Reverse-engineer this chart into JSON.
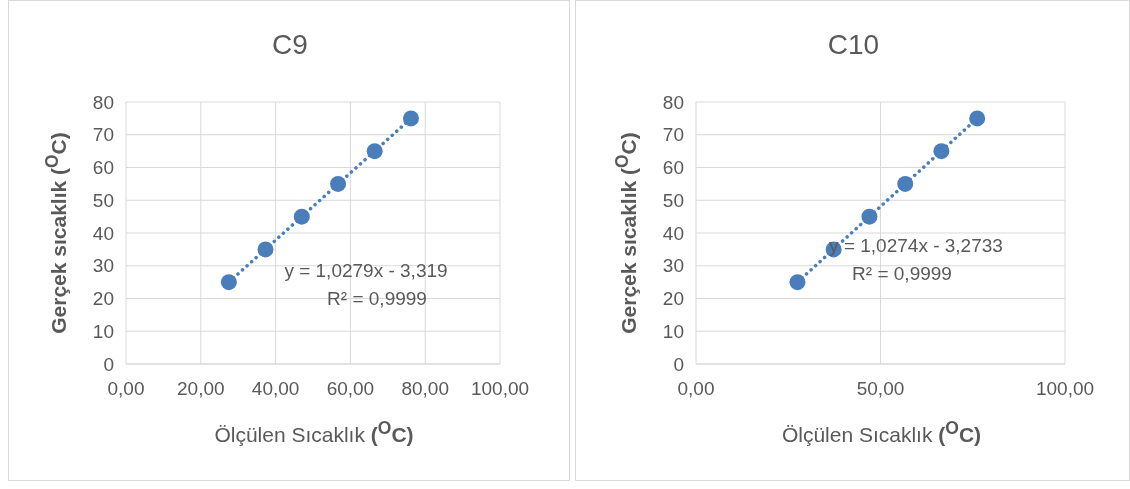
{
  "chart_data": [
    {
      "type": "scatter",
      "title": "C9",
      "xlabel": "Ölçülen Sıcaklık ($^{O}$C)",
      "ylabel": "Gerçek sıcaklık ($^{O}$C)",
      "xlim": [
        0,
        100
      ],
      "xticks": [
        {
          "value": 0,
          "label": "0,00"
        },
        {
          "value": 20,
          "label": "20,00"
        },
        {
          "value": 40,
          "label": "40,00"
        },
        {
          "value": 60,
          "label": "60,00"
        },
        {
          "value": 80,
          "label": "80,00"
        },
        {
          "value": 100,
          "label": "100,00"
        }
      ],
      "ylim": [
        0,
        80
      ],
      "yticks": [
        0,
        10,
        20,
        30,
        40,
        50,
        60,
        70,
        80
      ],
      "grid": true,
      "marker": "circle",
      "annotations": [
        "y = 1,0279x - 3,319",
        "R² = 0,9999"
      ],
      "series": [
        {
          "color": "#4a7ebb",
          "x": [
            27.5,
            37.3,
            47.0,
            56.7,
            66.5,
            76.2
          ],
          "values": [
            25,
            35,
            45,
            55,
            65,
            75
          ]
        },
        {
          "type": "line",
          "color": "#4a7ebb",
          "x": [
            27.5,
            76.2
          ],
          "values": [
            25,
            75
          ],
          "line_style": "dotted",
          "marker": "none"
        }
      ]
    },
    {
      "type": "scatter",
      "title": "C10",
      "xlabel": "Ölçülen Sıcaklık ($^{O}$C)",
      "ylabel": "Gerçek sıcaklık ($^{O}$C)",
      "xlim": [
        0,
        100
      ],
      "xticks": [
        {
          "value": 0,
          "label": "0,00"
        },
        {
          "value": 50,
          "label": "50,00"
        },
        {
          "value": 100,
          "label": "100,00"
        }
      ],
      "ylim": [
        0,
        80
      ],
      "yticks": [
        0,
        10,
        20,
        30,
        40,
        50,
        60,
        70,
        80
      ],
      "grid": true,
      "marker": "circle",
      "annotations": [
        "y = 1,0274x - 3,2733",
        "R² = 0,9999"
      ],
      "series": [
        {
          "color": "#4a7ebb",
          "x": [
            27.5,
            37.3,
            47.0,
            56.7,
            66.5,
            76.2
          ],
          "values": [
            25,
            35,
            45,
            55,
            65,
            75
          ]
        },
        {
          "type": "line",
          "color": "#4a7ebb",
          "x": [
            27.5,
            76.2
          ],
          "values": [
            25,
            75
          ],
          "line_style": "dotted",
          "marker": "none"
        }
      ]
    }
  ]
}
